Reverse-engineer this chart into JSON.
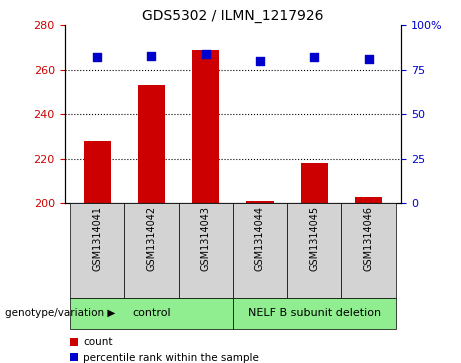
{
  "title": "GDS5302 / ILMN_1217926",
  "samples": [
    "GSM1314041",
    "GSM1314042",
    "GSM1314043",
    "GSM1314044",
    "GSM1314045",
    "GSM1314046"
  ],
  "counts": [
    228,
    253,
    269,
    201,
    218,
    203
  ],
  "percentile_ranks": [
    82,
    83,
    84,
    80,
    82,
    81
  ],
  "ylim_left": [
    200,
    280
  ],
  "yticks_left": [
    200,
    220,
    240,
    260,
    280
  ],
  "ylim_right": [
    0,
    100
  ],
  "yticks_right": [
    0,
    25,
    50,
    75,
    100
  ],
  "bar_color": "#cc0000",
  "dot_color": "#0000cc",
  "bar_bottom": 200,
  "group_labels": [
    "control",
    "NELF B subunit deletion"
  ],
  "group_ranges": [
    [
      0,
      2
    ],
    [
      3,
      5
    ]
  ],
  "group_color": "#90ee90",
  "sample_box_color": "#d3d3d3",
  "group_label_prefix": "genotype/variation",
  "legend_count_label": "count",
  "legend_percentile_label": "percentile rank within the sample",
  "dotted_gridlines": [
    220,
    240,
    260
  ],
  "dot_size": 35
}
